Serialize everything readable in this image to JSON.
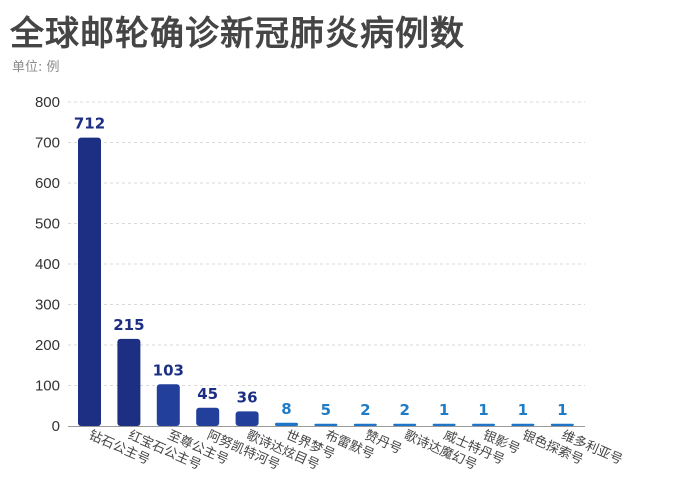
{
  "title": "全球邮轮确诊新冠肺炎病例数",
  "unit": "单位: 例",
  "chart_data": {
    "type": "bar",
    "title": "全球邮轮确诊新冠肺炎病例数",
    "subtitle": "单位: 例",
    "categories": [
      "钻石公主号",
      "红宝石公主号",
      "至尊公主号",
      "阿努凯特河号",
      "歌诗达炫目号",
      "世界梦号",
      "布雷默号",
      "赞丹号",
      "歌诗达魔幻号",
      "威士特丹号",
      "银影号",
      "银色探索号",
      "维多利亚号"
    ],
    "values": [
      712,
      215,
      103,
      45,
      36,
      8,
      5,
      2,
      2,
      1,
      1,
      1,
      1
    ],
    "yticks": [
      0,
      100,
      200,
      300,
      400,
      500,
      600,
      700,
      800
    ],
    "ylim": [
      0,
      800
    ],
    "grid": true,
    "legend": "none",
    "colors": {
      "dark": "#1d2f83",
      "medium": "#22409b",
      "light": "#1f74c8",
      "label_dark": "#1d2f83",
      "label_light": "#1f7cc6",
      "grid": "#d9d9d9",
      "axis": "#9a9a9a"
    }
  }
}
